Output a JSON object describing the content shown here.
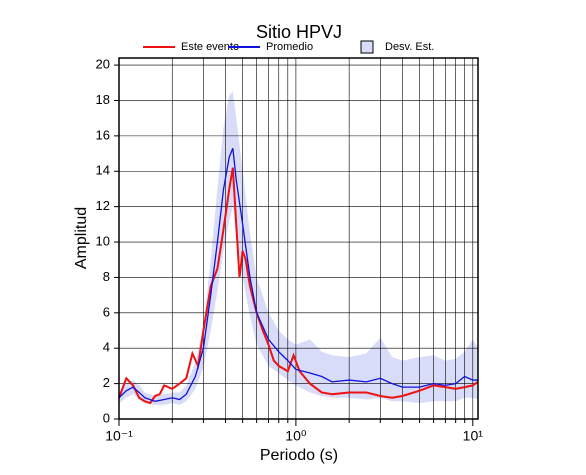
{
  "chart_data": {
    "type": "line",
    "title": "Sitio HPVJ",
    "xlabel": "Periodo (s)",
    "ylabel": "Amplitud",
    "xscale": "log",
    "xlim": [
      0.1,
      10.7
    ],
    "ylim": [
      0,
      20.4
    ],
    "xticks": [
      {
        "value": 0.1,
        "label": "10⁻¹"
      },
      {
        "value": 1,
        "label": "10⁰"
      },
      {
        "value": 10,
        "label": "10¹"
      }
    ],
    "xminor": [
      0.2,
      0.3,
      0.4,
      0.5,
      0.6,
      0.7,
      0.8,
      0.9,
      2,
      3,
      4,
      5,
      6,
      7,
      8,
      9
    ],
    "yticks": [
      0,
      2,
      4,
      6,
      8,
      10,
      12,
      14,
      16,
      18,
      20
    ],
    "grid": true,
    "band": {
      "name": "Desv. Est.",
      "color": "#d8dcf8",
      "x": [
        0.1,
        0.11,
        0.12,
        0.13,
        0.14,
        0.16,
        0.18,
        0.2,
        0.22,
        0.24,
        0.27,
        0.3,
        0.33,
        0.36,
        0.39,
        0.42,
        0.44,
        0.46,
        0.5,
        0.55,
        0.6,
        0.7,
        0.8,
        0.9,
        1.0,
        1.2,
        1.4,
        1.6,
        2,
        2.5,
        3,
        3.5,
        4,
        5,
        6,
        7,
        8,
        9,
        10,
        10.7
      ],
      "upper": [
        1.5,
        2.0,
        2.2,
        1.9,
        1.5,
        1.3,
        1.4,
        1.5,
        1.5,
        1.9,
        3.2,
        5.2,
        9,
        13,
        16.5,
        18.3,
        18.5,
        17,
        14,
        10.5,
        8,
        6,
        5,
        4.5,
        4.2,
        4.5,
        3.8,
        3.6,
        3.5,
        3.7,
        4.6,
        3.5,
        3.3,
        3.5,
        3.6,
        3.3,
        3.4,
        3.8,
        4.5,
        4.0
      ],
      "lower": [
        0.9,
        1.2,
        1.4,
        1.1,
        0.9,
        0.8,
        0.8,
        0.9,
        0.8,
        1.0,
        1.7,
        2.9,
        5.0,
        7.2,
        9.5,
        11.2,
        12,
        10.2,
        8,
        5.8,
        4.2,
        3.0,
        2.6,
        2.2,
        1.9,
        1.5,
        1.3,
        1.2,
        1.2,
        1.1,
        1.2,
        1.0,
        1.0,
        0.9,
        1.0,
        1.0,
        1.0,
        1.2,
        1.2,
        1.1
      ]
    },
    "series": [
      {
        "name": "Este evento",
        "color": "#ee1111",
        "x": [
          0.1,
          0.11,
          0.12,
          0.13,
          0.14,
          0.15,
          0.16,
          0.17,
          0.18,
          0.2,
          0.22,
          0.24,
          0.26,
          0.28,
          0.3,
          0.33,
          0.36,
          0.38,
          0.4,
          0.42,
          0.44,
          0.46,
          0.48,
          0.5,
          0.52,
          0.55,
          0.6,
          0.65,
          0.7,
          0.75,
          0.8,
          0.9,
          0.97,
          1.05,
          1.2,
          1.4,
          1.6,
          2,
          2.5,
          3,
          3.5,
          4,
          5,
          6,
          7,
          8,
          9,
          10,
          10.7
        ],
        "values": [
          1.2,
          2.3,
          1.9,
          1.2,
          1.0,
          0.9,
          1.3,
          1.4,
          1.9,
          1.7,
          2.0,
          2.3,
          3.7,
          3.0,
          5.0,
          7.5,
          8.5,
          10.0,
          11.5,
          13.0,
          14.2,
          11.0,
          8.0,
          9.5,
          9.0,
          7.5,
          6.0,
          5.0,
          4.2,
          3.3,
          3.0,
          2.7,
          3.6,
          2.7,
          2.0,
          1.5,
          1.4,
          1.5,
          1.5,
          1.3,
          1.2,
          1.3,
          1.6,
          1.9,
          1.8,
          1.7,
          1.8,
          1.9,
          2.1
        ]
      },
      {
        "name": "Promedio",
        "color": "#1111dd",
        "x": [
          0.1,
          0.11,
          0.12,
          0.13,
          0.14,
          0.16,
          0.18,
          0.2,
          0.22,
          0.24,
          0.27,
          0.3,
          0.33,
          0.36,
          0.39,
          0.42,
          0.44,
          0.46,
          0.5,
          0.55,
          0.6,
          0.7,
          0.8,
          0.9,
          1.0,
          1.2,
          1.4,
          1.6,
          2,
          2.5,
          3,
          3.5,
          4,
          5,
          6,
          7,
          8,
          9,
          10,
          10.7
        ],
        "values": [
          1.2,
          1.6,
          1.8,
          1.5,
          1.2,
          1.0,
          1.1,
          1.2,
          1.1,
          1.4,
          2.4,
          4.0,
          7.0,
          10.0,
          13.0,
          14.8,
          15.3,
          13.5,
          11.0,
          8.0,
          6.0,
          4.5,
          3.8,
          3.3,
          2.8,
          2.6,
          2.4,
          2.1,
          2.2,
          2.1,
          2.3,
          2.0,
          1.8,
          1.8,
          2.0,
          1.9,
          2.0,
          2.4,
          2.2,
          2.2
        ]
      }
    ]
  }
}
